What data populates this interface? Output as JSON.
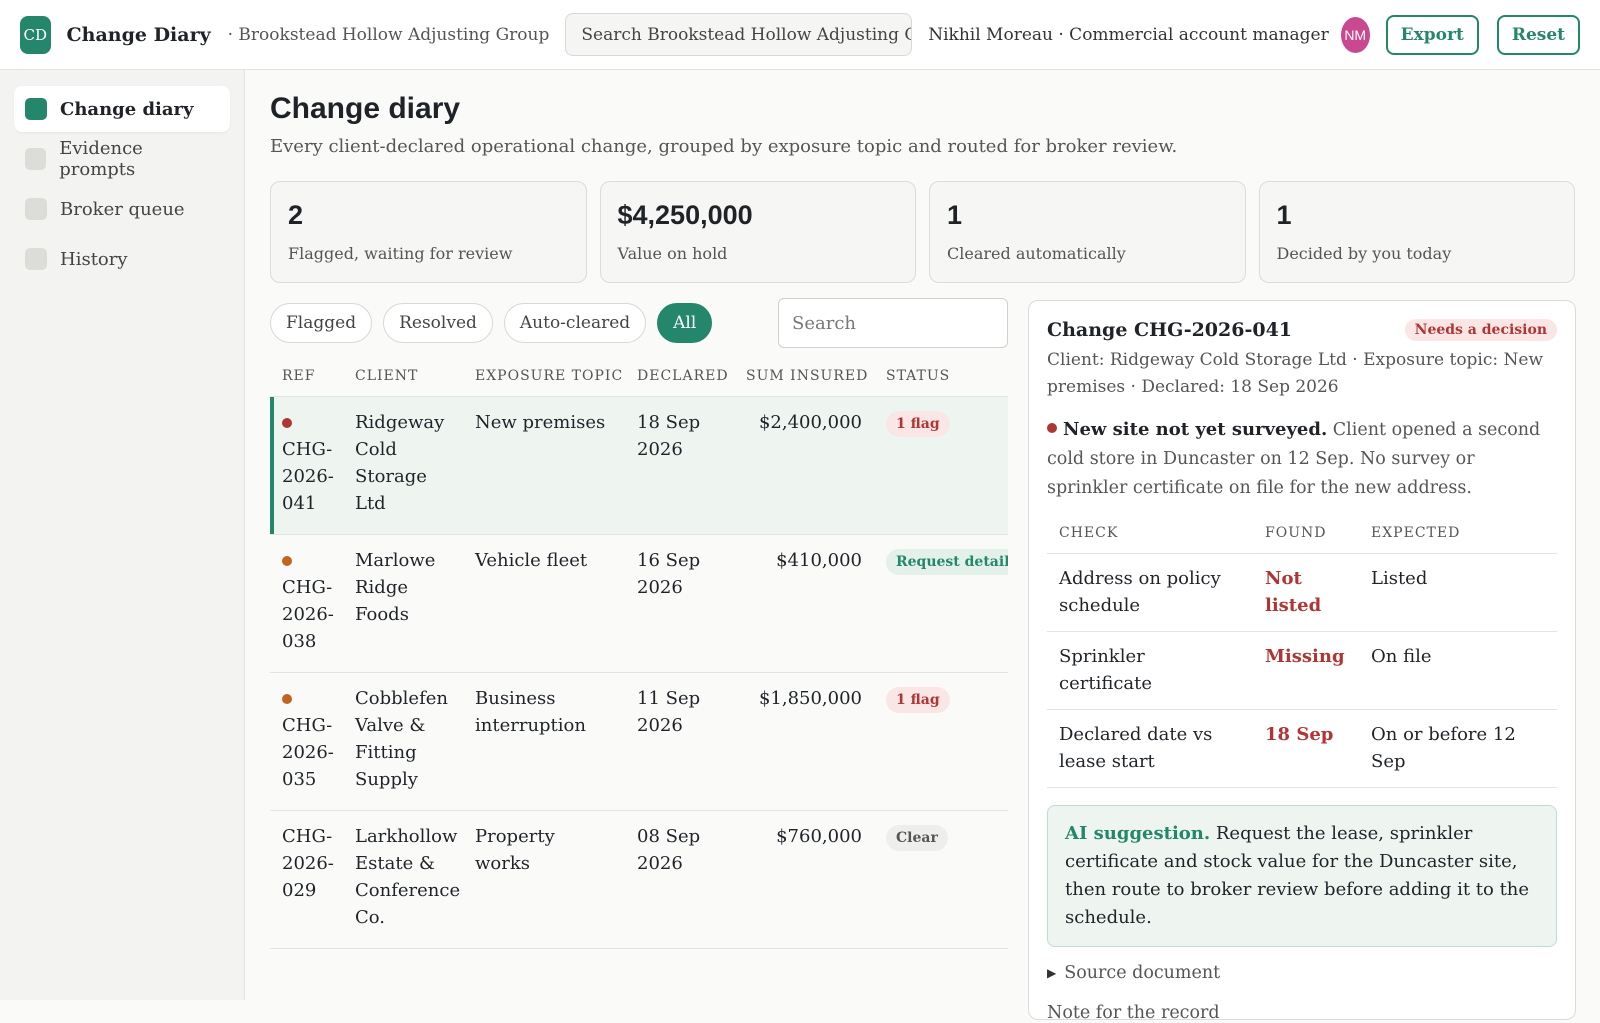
{
  "header": {
    "logo_initials": "CD",
    "app_title": "Change Diary",
    "org": "· Brookstead Hollow Adjusting Group",
    "search_text": "Search Brookstead Hollow Adjusting Group...",
    "user": "Nikhil Moreau · Commercial account manager",
    "avatar_initials": "NM",
    "export_label": "Export",
    "reset_label": "Reset"
  },
  "sidebar": {
    "items": [
      {
        "label": "Change diary",
        "active": true
      },
      {
        "label": "Evidence prompts",
        "active": false
      },
      {
        "label": "Broker queue",
        "active": false
      },
      {
        "label": "History",
        "active": false
      }
    ]
  },
  "page": {
    "title": "Change diary",
    "subtitle": "Every client-declared operational change, grouped by exposure topic and routed for broker review."
  },
  "stats": [
    {
      "value": "2",
      "label": "Flagged, waiting for review"
    },
    {
      "value": "$4,250,000",
      "label": "Value on hold"
    },
    {
      "value": "1",
      "label": "Cleared automatically"
    },
    {
      "value": "1",
      "label": "Decided by you today"
    }
  ],
  "filters": {
    "chips": [
      "Flagged",
      "Resolved",
      "Auto-cleared",
      "All"
    ],
    "active": "All",
    "search_placeholder": "Search"
  },
  "table": {
    "headers": {
      "ref": "REF",
      "client": "CLIENT",
      "topic": "EXPOSURE TOPIC",
      "declared": "DECLARED",
      "sum": "SUM  INSURED",
      "status": "STATUS"
    },
    "rows": [
      {
        "ref": "CHG-2026-041",
        "client": "Ridgeway Cold Storage Ltd",
        "topic": "New premises",
        "declared": "18 Sep 2026",
        "sum": "$2,400,000",
        "status": "1 flag",
        "status_kind": "flag",
        "dot_color": "#b03535",
        "selected": true
      },
      {
        "ref": "CHG-2026-038",
        "client": "Marlowe Ridge Foods",
        "topic": "Vehicle fleet",
        "declared": "16 Sep 2026",
        "sum": "$410,000",
        "status": "Request detail",
        "status_kind": "req",
        "dot_color": "#c0651f",
        "selected": false
      },
      {
        "ref": "CHG-2026-035",
        "client": "Cobblefen Valve & Fitting Supply",
        "topic": "Business interruption",
        "declared": "11 Sep 2026",
        "sum": "$1,850,000",
        "status": "1 flag",
        "status_kind": "flag",
        "dot_color": "#c0651f",
        "selected": false
      },
      {
        "ref": "CHG-2026-029",
        "client": "Larkhollow Estate & Conference Co.",
        "topic": "Property works",
        "declared": "08 Sep 2026",
        "sum": "$760,000",
        "status": "Clear",
        "status_kind": "clear",
        "dot_color": "",
        "selected": false
      }
    ]
  },
  "detail": {
    "title": "Change CHG-2026-041",
    "badge": "Needs a decision",
    "meta": "Client: Ridgeway Cold Storage Ltd · Exposure topic: New premises · Declared: 18 Sep 2026",
    "finding_title": "New site not yet surveyed.",
    "finding_body": " Client opened a second cold store in Duncaster on 12 Sep. No survey or sprinkler certificate on file for the new address.",
    "checks_headers": {
      "check": "CHECK",
      "found": "FOUND",
      "expected": "EXPECTED"
    },
    "checks": [
      {
        "check": "Address on policy schedule",
        "found": "Not listed",
        "expected": "Listed"
      },
      {
        "check": "Sprinkler certificate",
        "found": "Missing",
        "expected": "On file"
      },
      {
        "check": "Declared date vs lease start",
        "found": "18 Sep",
        "expected": "On or before 12 Sep"
      }
    ],
    "ai_label": "AI suggestion.",
    "ai_text": " Request the lease, sprinkler certificate and stock value for the Duncaster site, then route to broker review before adding it to the schedule.",
    "source_label": "Source document",
    "note_label": "Note for the record"
  },
  "colors": {
    "accent": "#24866a",
    "danger": "#b03535",
    "warning_dot": "#c0651f",
    "avatar": "#c9488f"
  }
}
